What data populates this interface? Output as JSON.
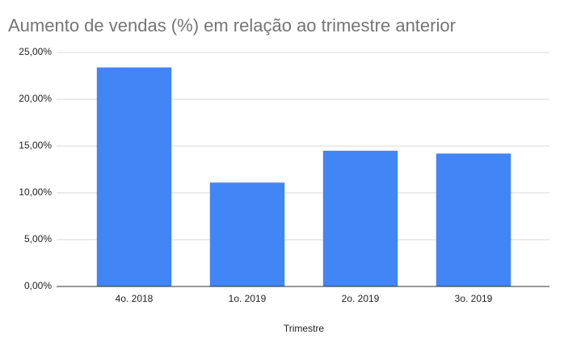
{
  "chart_data": {
    "type": "bar",
    "title": "Aumento de vendas (%) em relação ao trimestre anterior",
    "x_label": "Trimestre",
    "categories": [
      "4o. 2018",
      "1o. 2019",
      "2o. 2019",
      "3o. 2019"
    ],
    "values": [
      23.4,
      11.1,
      14.5,
      14.2
    ],
    "color": "#4285f4",
    "ylim": [
      0,
      25
    ],
    "yticks": [
      {
        "value": 0,
        "label": "0,00%"
      },
      {
        "value": 5,
        "label": "5,00%"
      },
      {
        "value": 10,
        "label": "10,00%"
      },
      {
        "value": 15,
        "label": "15,00%"
      },
      {
        "value": 20,
        "label": "20,00%"
      },
      {
        "value": 25,
        "label": "25,00%"
      }
    ],
    "grid": true
  }
}
